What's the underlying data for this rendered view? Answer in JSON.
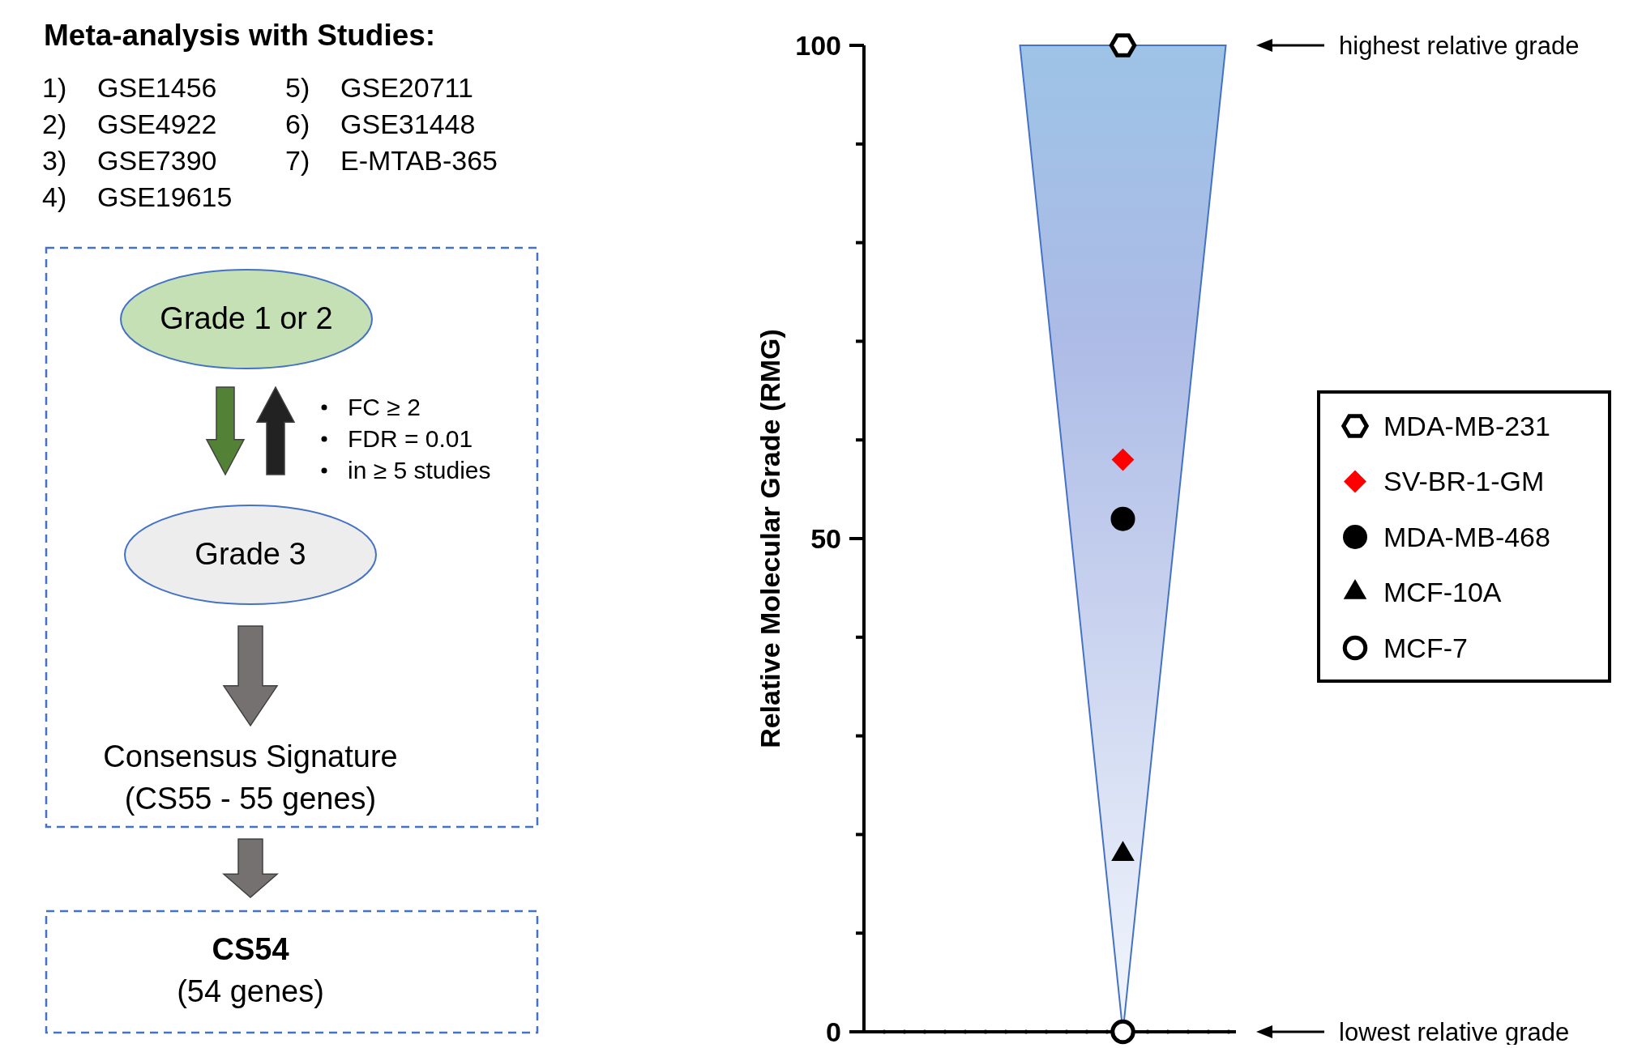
{
  "chart_data": [
    {
      "type": "other",
      "title": "Meta-analysis with Studies:",
      "annotations": [
        "1)    GSE1456",
        "2)    GSE4922",
        "3)    GSE7390",
        "4)    GSE19615",
        "5)    GSE20711",
        "6)    GSE31448",
        "7)    E-MTAB-365",
        "Grade 1 or 2",
        "FC ≥ 2",
        "FDR = 0.01",
        "in ≥ 5 studies",
        "Grade 3",
        "Consensus Signature",
        "(CS55 - 55 genes)",
        "CS54",
        "(54 genes)"
      ]
    },
    {
      "type": "scatter",
      "ylabel": "Relative Molecular Grade (RMG)",
      "categories": [
        null
      ],
      "ylim": [
        0,
        100
      ],
      "yticks": [
        0,
        {
          "value": 10,
          "label": null
        },
        {
          "value": 20,
          "label": null
        },
        {
          "value": 30,
          "label": null
        },
        {
          "value": 40,
          "label": null
        },
        50,
        {
          "value": 60,
          "label": null
        },
        {
          "value": 70,
          "label": null
        },
        {
          "value": 80,
          "label": null
        },
        {
          "value": 90,
          "label": null
        },
        100
      ],
      "grid": false,
      "legend": "right",
      "tick_labels": "y",
      "series": [
        {
          "name": "MDA-MB-231",
          "color": "#000000",
          "values": [
            100
          ]
        },
        {
          "name": "SV-BR-1-GM",
          "color": "#ff0000",
          "marker": "diamond",
          "values": [
            58
          ]
        },
        {
          "name": "MDA-MB-468",
          "color": "#000000",
          "marker": "circle",
          "values": [
            52
          ]
        },
        {
          "name": "MCF-10A",
          "color": "#000000",
          "marker": "triangle",
          "values": [
            18
          ]
        },
        {
          "name": "MCF-7",
          "color": "#000000",
          "marker": "open-circle",
          "values": [
            0
          ]
        }
      ],
      "annotations": [
        "highest relative grade",
        "lowest relative grade"
      ]
    }
  ]
}
